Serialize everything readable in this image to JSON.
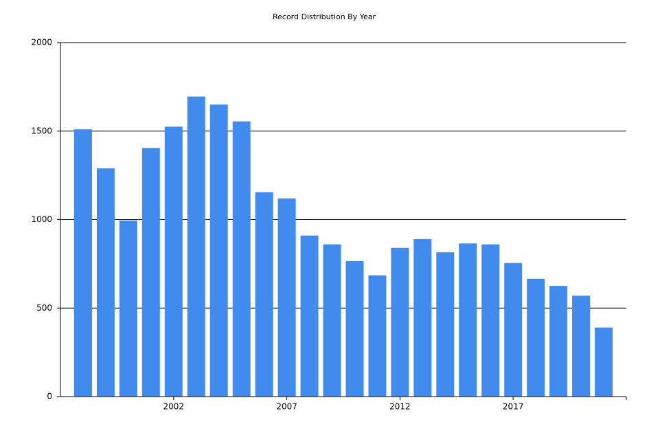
{
  "chart_data": {
    "type": "bar",
    "title": "Record Distribution By Year",
    "categories": [
      null,
      null,
      null,
      null,
      "2002",
      null,
      null,
      null,
      null,
      "2007",
      null,
      null,
      null,
      null,
      "2012",
      null,
      null,
      null,
      null,
      "2017",
      null,
      null,
      null,
      null
    ],
    "values": [
      1510,
      1290,
      995,
      1405,
      1525,
      1695,
      1650,
      1555,
      1155,
      1120,
      910,
      860,
      765,
      685,
      840,
      890,
      815,
      865,
      860,
      755,
      665,
      625,
      570,
      390
    ],
    "color": "#428bee",
    "ylim": [
      0,
      2000
    ],
    "yticks": [
      0,
      500,
      1000,
      1500,
      2000
    ],
    "grid": true
  }
}
